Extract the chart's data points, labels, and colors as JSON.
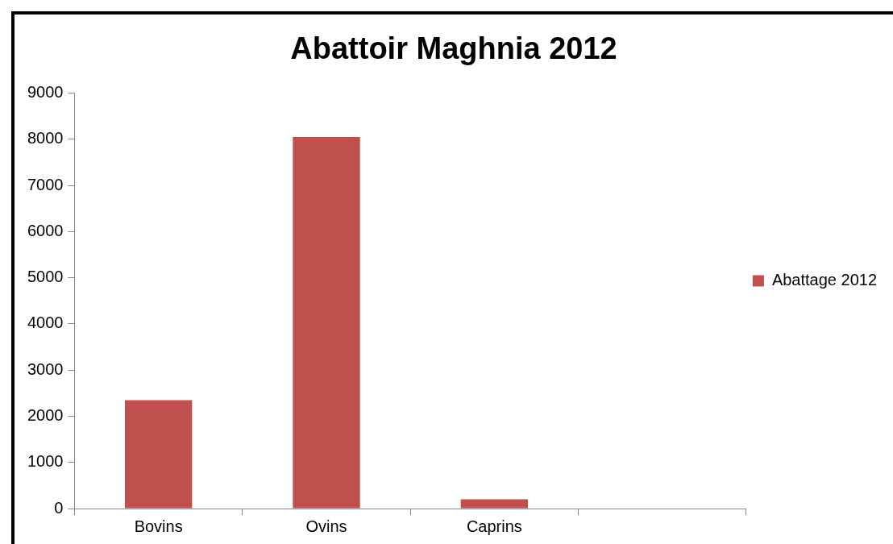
{
  "chart_data": {
    "type": "bar",
    "title": "Abattoir Maghnia 2012",
    "categories": [
      "Bovins",
      "Ovins",
      "Caprins",
      null
    ],
    "series": [
      {
        "name": "Abattage 2012",
        "color": "#c0504d",
        "values": [
          2350,
          8050,
          200,
          null
        ]
      }
    ],
    "ylim": [
      0,
      9000
    ],
    "yticks": [
      0,
      1000,
      2000,
      3000,
      4000,
      5000,
      6000,
      7000,
      8000,
      9000
    ],
    "grid": false,
    "legend": "right"
  }
}
